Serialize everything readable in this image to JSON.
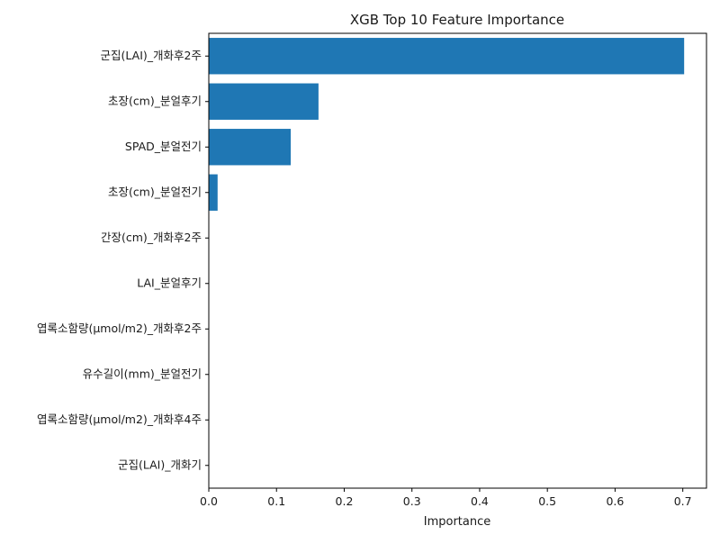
{
  "chart_data": {
    "type": "bar",
    "orientation": "horizontal",
    "title": "XGB Top 10 Feature Importance",
    "xlabel": "Importance",
    "ylabel": "",
    "xlim": [
      0,
      0.735
    ],
    "xticks": [
      0.0,
      0.1,
      0.2,
      0.3,
      0.4,
      0.5,
      0.6,
      0.7
    ],
    "xtick_labels": [
      "0.0",
      "0.1",
      "0.2",
      "0.3",
      "0.4",
      "0.5",
      "0.6",
      "0.7"
    ],
    "categories": [
      "군집(LAI)_개화후2주",
      "초장(cm)_분얼후기",
      "SPAD_분얼전기",
      "초장(cm)_분얼전기",
      "간장(cm)_개화후2주",
      "LAI_분얼후기",
      "엽록소함량(μmol/m2)_개화후2주",
      "유수길이(mm)_분얼전기",
      "엽록소함량(μmol/m2)_개화후4주",
      "군집(LAI)_개화기"
    ],
    "values": [
      0.702,
      0.162,
      0.121,
      0.013,
      0.0,
      0.0,
      0.0,
      0.0,
      0.0,
      0.0
    ],
    "bar_color": "#1f77b4",
    "grid": false,
    "legend": "none"
  }
}
